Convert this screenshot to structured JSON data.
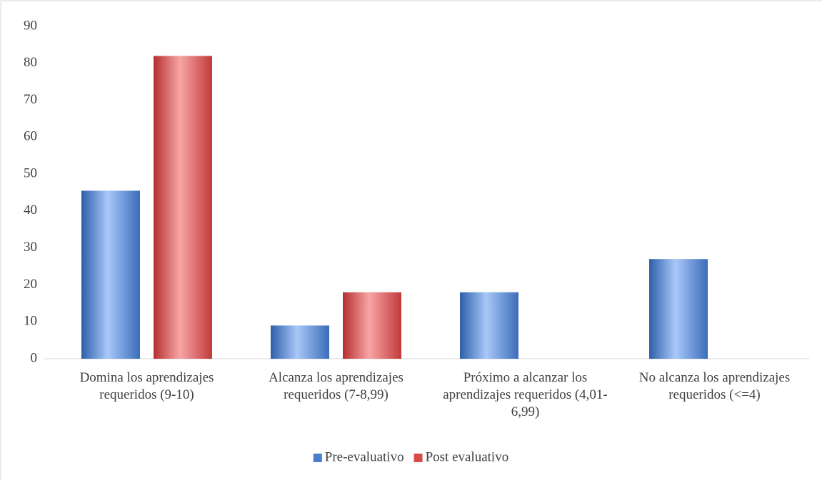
{
  "chart_data": {
    "type": "bar",
    "categories": [
      "Domina los aprendizajes requeridos (9-10)",
      "Alcanza los aprendizajes requeridos (7-8,99)",
      "Próximo a alcanzar los aprendizajes requeridos (4,01-6,99)",
      "No alcanza los aprendizajes requeridos (<=4)"
    ],
    "series": [
      {
        "name": "Pre-evaluativo",
        "color": "#4a7fd0",
        "values": [
          45.5,
          9,
          18,
          27
        ]
      },
      {
        "name": "Post evaluativo",
        "color": "#d94c4c",
        "values": [
          82,
          18,
          0,
          0
        ]
      }
    ],
    "ylim": [
      0,
      90
    ],
    "yticks": [
      0,
      10,
      20,
      30,
      40,
      50,
      60,
      70,
      80,
      90
    ],
    "legend": "bottom"
  }
}
